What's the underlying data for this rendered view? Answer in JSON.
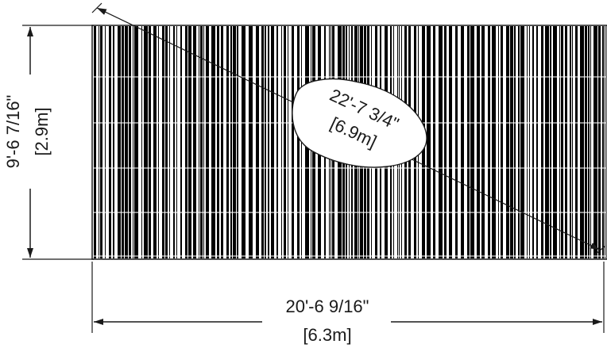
{
  "dimensions": {
    "height": {
      "imperial": "9'-6 7/16\"",
      "metric": "[2.9m]"
    },
    "width": {
      "imperial": "20'-6 9/16\"",
      "metric": "[6.3m]"
    },
    "diagonal": {
      "imperial": "22'-7 3/4\"",
      "metric": "[6.9m]"
    }
  },
  "panel": {
    "fill": "#000000",
    "background": "#ffffff",
    "line_color": "#1a1a1a"
  }
}
